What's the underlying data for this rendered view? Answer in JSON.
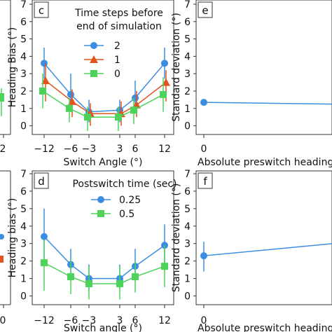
{
  "chart_data": [
    {
      "panel": "c",
      "type": "line",
      "xlabel": "Switch Angle (°)",
      "ylabel": "Heading Bias (°)",
      "xticks": [
        "−12",
        "−6",
        "−3",
        "3",
        "6",
        "12"
      ],
      "yticks": [
        "0",
        "1",
        "2",
        "3",
        "4",
        "5",
        "6",
        "7"
      ],
      "ylim": [
        -0.5,
        7
      ],
      "legend": {
        "title": "Time steps before\nend of simulation",
        "position": "top"
      },
      "x": [
        -12,
        -6,
        -3,
        3,
        6,
        12
      ],
      "series": [
        {
          "name": "2",
          "color": "#3a8de0",
          "marker": "circle",
          "offset": 0,
          "values": [
            3.6,
            1.8,
            0.8,
            0.9,
            1.6,
            3.6
          ],
          "err_low": [
            2.7,
            0.8,
            0.2,
            0.2,
            0.7,
            2.7
          ],
          "err_high": [
            4.5,
            3.0,
            1.5,
            1.5,
            2.6,
            4.5
          ]
        },
        {
          "name": "1",
          "color": "#e2541f",
          "marker": "triangle",
          "offset": 0.5,
          "values": [
            2.6,
            1.4,
            0.7,
            0.7,
            1.2,
            2.5
          ],
          "err_low": [
            1.4,
            0.5,
            0.0,
            0.0,
            0.5,
            1.4
          ],
          "err_high": [
            3.6,
            2.1,
            1.3,
            1.4,
            2.0,
            3.2
          ]
        },
        {
          "name": "0",
          "color": "#4ed35a",
          "marker": "square",
          "offset": -0.5,
          "values": [
            2.0,
            1.0,
            0.5,
            0.5,
            0.9,
            1.8
          ],
          "err_low": [
            1.0,
            0.2,
            -0.3,
            -0.3,
            0.1,
            0.8
          ],
          "err_high": [
            3.0,
            1.6,
            1.1,
            1.1,
            1.6,
            2.8
          ]
        }
      ]
    },
    {
      "panel": "d",
      "type": "line",
      "xlabel": "Switch angle (°)",
      "ylabel": "Heading bias (°)",
      "xticks": [
        "−12",
        "−6",
        "−3",
        "3",
        "6",
        "12"
      ],
      "yticks": [
        "0",
        "1",
        "2",
        "3",
        "4",
        "5",
        "6",
        "7"
      ],
      "ylim": [
        -0.5,
        7
      ],
      "legend": {
        "title": "Postswitch time (sec)",
        "position": "top"
      },
      "x": [
        -12,
        -6,
        -3,
        3,
        6,
        12
      ],
      "series": [
        {
          "name": "0.25",
          "color": "#3a8de0",
          "marker": "circle",
          "offset": 0,
          "values": [
            3.4,
            1.8,
            1.0,
            1.0,
            1.7,
            2.9
          ],
          "err_low": [
            1.8,
            0.9,
            0.3,
            0.4,
            0.9,
            1.8
          ],
          "err_high": [
            5.0,
            2.7,
            1.8,
            1.8,
            2.7,
            4.1
          ]
        },
        {
          "name": "0.5",
          "color": "#4ed35a",
          "marker": "square",
          "offset": 0,
          "values": [
            1.9,
            1.1,
            0.7,
            0.7,
            1.1,
            1.7
          ],
          "err_low": [
            0.3,
            0.1,
            -0.2,
            -0.2,
            0.2,
            0.5
          ],
          "err_high": [
            3.2,
            2.1,
            1.7,
            1.7,
            2.0,
            2.9
          ]
        }
      ]
    },
    {
      "panel": "e",
      "type": "line",
      "xlabel": "Absolute preswitch heading (°",
      "ylabel": "Standard deviation (°)",
      "xticks": [
        "0"
      ],
      "yticks": [
        "0",
        "1",
        "2",
        "3",
        "4",
        "5",
        "6",
        "7"
      ],
      "ylim": [
        -0.5,
        7
      ],
      "series": [
        {
          "name": "",
          "color": "#3a8de0",
          "marker": "circle",
          "x": [
            0,
            10
          ],
          "values": [
            1.35,
            1.25
          ]
        }
      ]
    },
    {
      "panel": "f",
      "type": "line",
      "xlabel": "Absolute preswitch heading (",
      "ylabel": "Standard deviation (°)",
      "xticks": [
        "0"
      ],
      "yticks": [
        "0",
        "1",
        "2",
        "3",
        "4",
        "5",
        "6",
        "7"
      ],
      "ylim": [
        -0.5,
        7
      ],
      "series": [
        {
          "name": "",
          "color": "#3a8de0",
          "marker": "circle",
          "x": [
            0,
            10
          ],
          "values": [
            2.3,
            3.0
          ],
          "err_low": [
            1.4,
            null
          ],
          "err_high": [
            3.1,
            null
          ]
        }
      ]
    }
  ],
  "left_clip": {
    "top": {
      "tick_label": "2"
    },
    "bottom": {
      "tick_label": "0"
    }
  }
}
